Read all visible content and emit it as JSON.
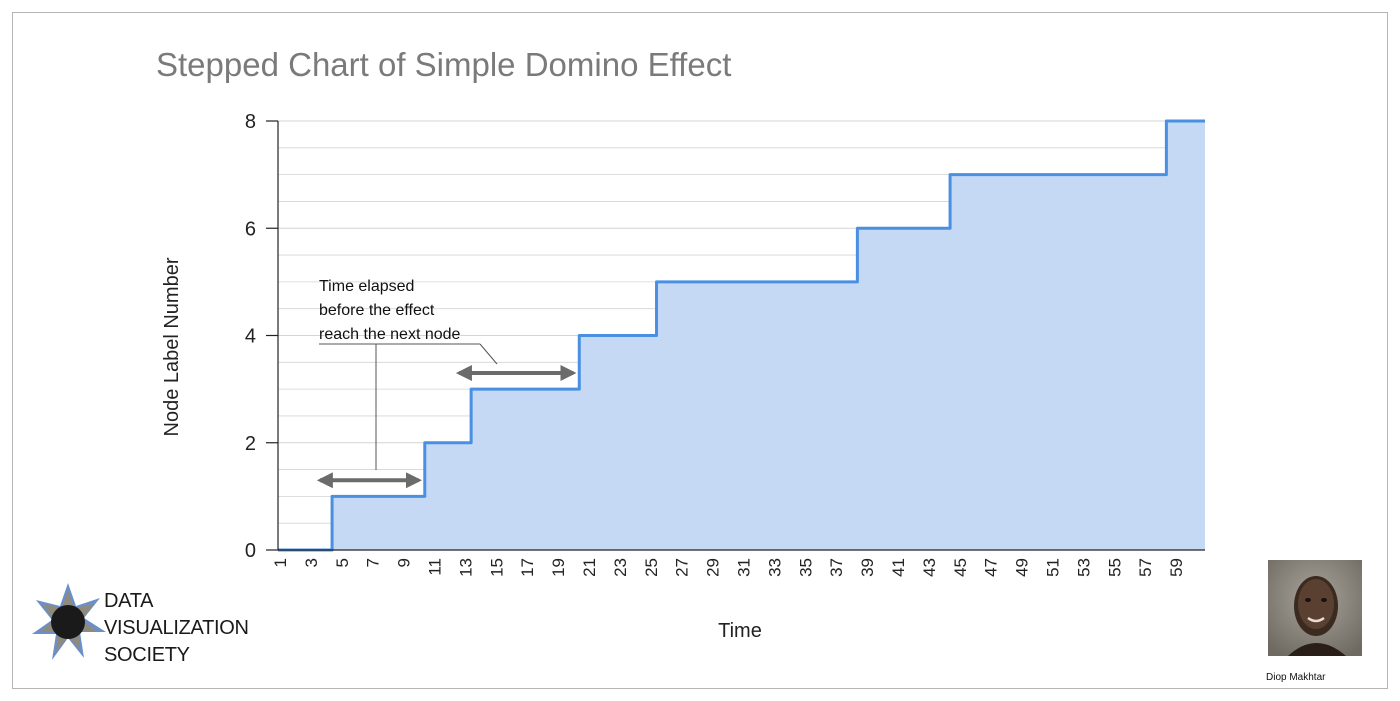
{
  "chart_data": {
    "type": "line",
    "step": true,
    "title": "Stepped Chart of Simple Domino Effect",
    "xlabel": "Time",
    "ylabel": "Node Label Number",
    "x_tick_labels": [
      "1",
      "3",
      "5",
      "7",
      "9",
      "11",
      "13",
      "15",
      "17",
      "19",
      "21",
      "23",
      "25",
      "27",
      "29",
      "31",
      "33",
      "35",
      "37",
      "39",
      "41",
      "43",
      "45",
      "47",
      "49",
      "51",
      "53",
      "55",
      "57",
      "59"
    ],
    "xlim": [
      1,
      61
    ],
    "ylim": [
      0,
      8
    ],
    "y_ticks": [
      0,
      2,
      4,
      6,
      8
    ],
    "grid": true,
    "area_fill": true,
    "series": [
      {
        "points": [
          {
            "x": 1,
            "y": 0
          },
          {
            "x": 4.5,
            "y": 1
          },
          {
            "x": 10.5,
            "y": 2
          },
          {
            "x": 13.5,
            "y": 3
          },
          {
            "x": 20.5,
            "y": 4
          },
          {
            "x": 25.5,
            "y": 5
          },
          {
            "x": 38.5,
            "y": 6
          },
          {
            "x": 44.5,
            "y": 7
          },
          {
            "x": 58.5,
            "y": 8
          },
          {
            "x": 61,
            "y": 8
          }
        ],
        "color": "#4a90e2",
        "fill": "#c5d9f5"
      }
    ],
    "annotations": [
      {
        "text_lines": [
          "Time elapsed",
          "before the effect",
          "reach the next node"
        ]
      }
    ],
    "annotation_arrows": [
      {
        "x_from": 4.5,
        "x_to": 10.5,
        "y": 1.3
      },
      {
        "x_from": 13.5,
        "x_to": 20.5,
        "y": 3.3
      }
    ]
  },
  "logo": {
    "lines": [
      "DATA",
      "VISUALIZATION",
      "SOCIETY"
    ]
  },
  "author": {
    "name": "Diop Makhtar"
  },
  "colors": {
    "line": "#4a90e2",
    "area": "#c5d9f5",
    "arrow": "#6b6b6b",
    "grid": "#d4d4d4",
    "title": "#7a7a7a"
  }
}
